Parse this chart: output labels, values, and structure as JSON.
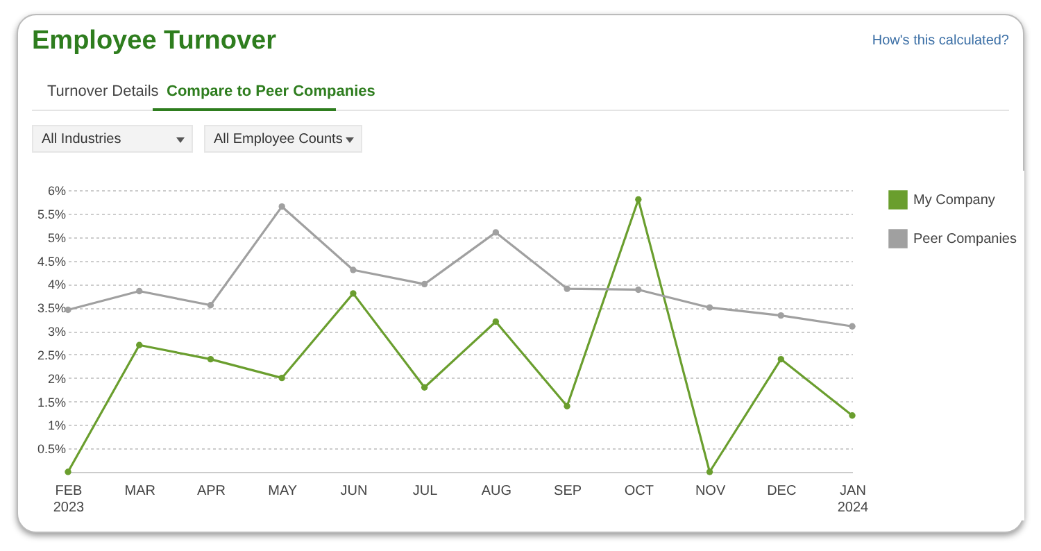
{
  "chart_data": {
    "type": "line",
    "title": "Employee Turnover",
    "annotations": [
      "Turnover Details",
      "Compare to Peer Companies",
      "All Industries",
      "All Employee Counts",
      "How's this calculated?"
    ],
    "categories": [
      "FEB 2023",
      "MAR",
      "APR",
      "MAY",
      "JUN",
      "JUL",
      "AUG",
      "SEP",
      "OCT",
      "NOV",
      "DEC",
      "JAN 2024"
    ],
    "series": [
      {
        "name": "My Company",
        "color": "#6a9e2e",
        "values": [
          0,
          2.7,
          2.4,
          2.0,
          3.8,
          1.8,
          3.2,
          1.4,
          5.8,
          0,
          2.4,
          1.2
        ]
      },
      {
        "name": "Peer Companies",
        "color": "#a0a0a0",
        "values": [
          3.45,
          3.85,
          3.55,
          5.65,
          4.3,
          4.0,
          5.1,
          3.9,
          3.88,
          3.5,
          3.33,
          3.1
        ]
      }
    ],
    "ylim": [
      0,
      6
    ],
    "yticks": [
      {
        "value": 0.5,
        "label": "0.5%"
      },
      {
        "value": 1,
        "label": "1%"
      },
      {
        "value": 1.5,
        "label": "1.5%"
      },
      {
        "value": 2,
        "label": "2%"
      },
      {
        "value": 2.5,
        "label": "2.5%"
      },
      {
        "value": 3,
        "label": "3%"
      },
      {
        "value": 3.5,
        "label": "3.5%"
      },
      {
        "value": 4,
        "label": "4%"
      },
      {
        "value": 4.5,
        "label": "4.5%"
      },
      {
        "value": 5,
        "label": "5%"
      },
      {
        "value": 5.5,
        "label": "5.5%"
      },
      {
        "value": 6,
        "label": "6%"
      }
    ],
    "grid": "y",
    "legend": "right",
    "marker": "circle",
    "line_style": "solid"
  }
}
